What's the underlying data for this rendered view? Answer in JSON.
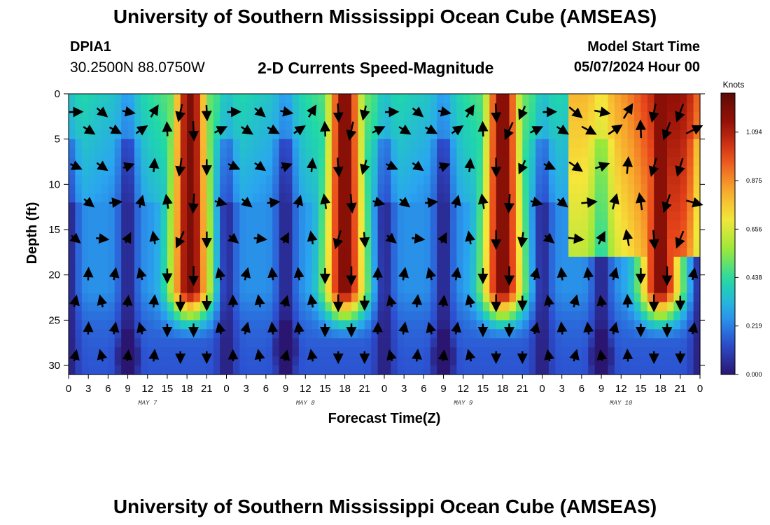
{
  "header": {
    "title": "University of Southern Mississippi Ocean Cube (AMSEAS)",
    "station_id": "DPIA1",
    "station_coords": "30.2500N  88.0750W",
    "plot_title": "2-D Currents Speed-Magnitude",
    "model_start_label": "Model Start Time",
    "model_start_value": "05/07/2024 Hour 00"
  },
  "footer": {
    "title": "University of Southern Mississippi Ocean Cube (AMSEAS)"
  },
  "chart_data": {
    "type": "heatmap",
    "title": "2-D Currents Speed-Magnitude",
    "xlabel": "Forecast Time(Z)",
    "ylabel": "Depth (ft)",
    "x_range_hours": [
      0,
      96
    ],
    "y_range_ft": [
      0,
      31
    ],
    "x_tick_labels": [
      "0",
      "3",
      "6",
      "9",
      "12",
      "15",
      "18",
      "21",
      "0",
      "3",
      "6",
      "9",
      "12",
      "15",
      "18",
      "21",
      "0",
      "3",
      "6",
      "9",
      "12",
      "15",
      "18",
      "21",
      "0",
      "3",
      "6",
      "9",
      "12",
      "15",
      "18",
      "21",
      "0"
    ],
    "y_ticks": [
      0,
      5,
      10,
      15,
      20,
      25,
      30
    ],
    "day_labels": [
      {
        "label": "MAY 7",
        "hour": 12
      },
      {
        "label": "MAY 8",
        "hour": 36
      },
      {
        "label": "MAY 9",
        "hour": 60
      },
      {
        "label": "MAY 10",
        "hour": 84
      }
    ],
    "colorbar": {
      "unit": "Knots",
      "min": 0.0,
      "max": 1.27,
      "ticks": [
        "0.000",
        "0.219",
        "0.438",
        "0.656",
        "0.875",
        "1.094"
      ],
      "colors": [
        "#2a1670",
        "#2c4fd0",
        "#2aa5f0",
        "#1fd9a8",
        "#9ae83a",
        "#f6e63a",
        "#f7a02b",
        "#e8461b",
        "#9a1208",
        "#5c0a06"
      ]
    },
    "speed_peaks_hours": [
      18.5,
      42,
      66,
      90
    ],
    "speed_lows_hours": [
      0,
      9,
      24,
      33,
      48,
      57,
      72,
      81,
      96
    ],
    "max_speed_knots": 1.2,
    "vector_depths_ft": [
      2,
      4,
      8,
      12,
      16,
      20,
      23,
      26,
      29
    ]
  }
}
